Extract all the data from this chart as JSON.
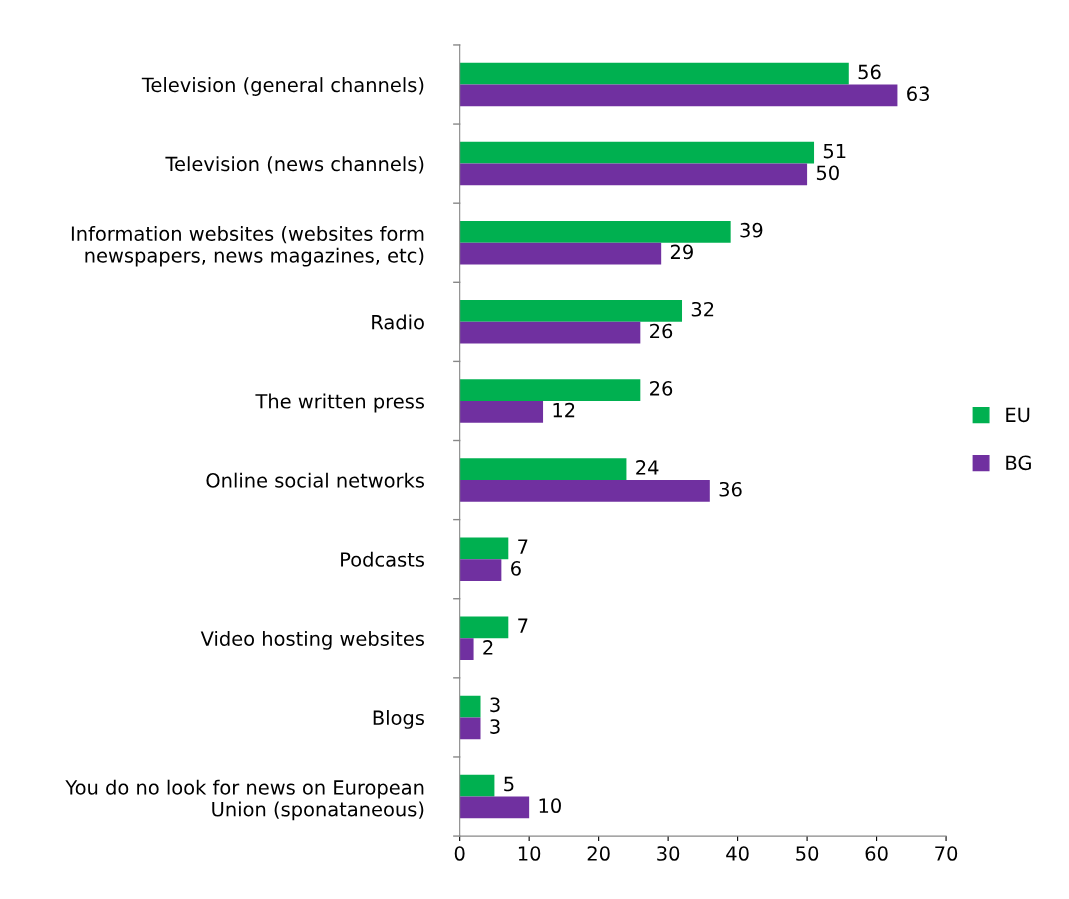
{
  "chart_data": {
    "type": "bar",
    "orientation": "horizontal",
    "categories": [
      "Television (general channels)",
      "Television (news channels)",
      "Information websites (websites form\nnewspapers, news magazines, etc)",
      "Radio",
      "The written press",
      "Online social networks",
      "Podcasts",
      "Video hosting websites",
      "Blogs",
      "You do no look for news on European\nUnion (sponataneous)"
    ],
    "series": [
      {
        "name": "EU",
        "color": "#00b050",
        "values": [
          56,
          51,
          39,
          32,
          26,
          24,
          7,
          7,
          3,
          5
        ]
      },
      {
        "name": "BG",
        "color": "#7030a0",
        "values": [
          63,
          50,
          29,
          26,
          12,
          36,
          6,
          2,
          3,
          10
        ]
      }
    ],
    "xlim": [
      0,
      70
    ],
    "xticks": [
      0,
      10,
      20,
      30,
      40,
      50,
      60,
      70
    ],
    "data_labels": true,
    "legend": "right",
    "grid": false
  }
}
